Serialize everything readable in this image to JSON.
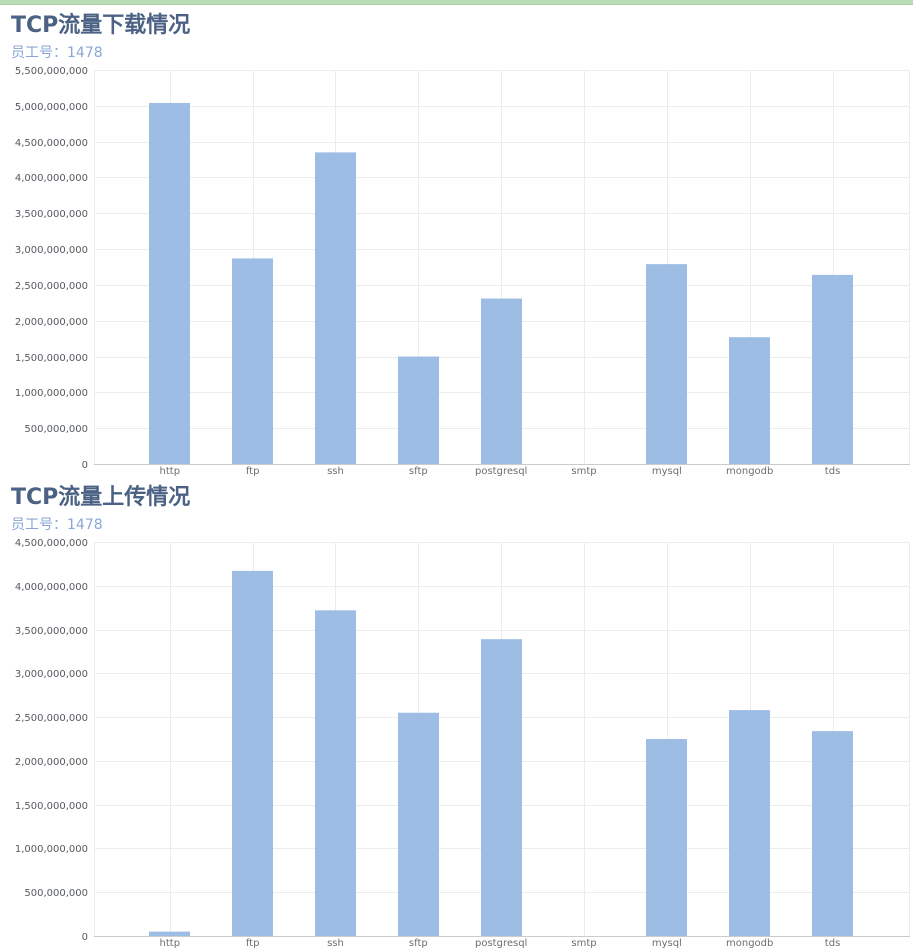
{
  "colors": {
    "bar": "#9dbde5",
    "grid": "#ececec",
    "axis": "#cccccc",
    "title": "#4b6285",
    "subtitle": "#88a7d6"
  },
  "chart_data": [
    {
      "type": "bar",
      "title": "TCP流量下载情况",
      "subtitle": "员工号：1478",
      "categories": [
        "http",
        "ftp",
        "ssh",
        "sftp",
        "postgresql",
        "smtp",
        "mysql",
        "mongodb",
        "tds"
      ],
      "values": [
        5040000000,
        2870000000,
        4350000000,
        1500000000,
        2310000000,
        0,
        2790000000,
        1770000000,
        2640000000
      ],
      "ylim": [
        0,
        5500000000
      ],
      "yticks": [
        0,
        500000000,
        1000000000,
        1500000000,
        2000000000,
        2500000000,
        3000000000,
        3500000000,
        4000000000,
        4500000000,
        5000000000,
        5500000000
      ],
      "grid": true,
      "xlabel": "",
      "ylabel": ""
    },
    {
      "type": "bar",
      "title": "TCP流量上传情况",
      "subtitle": "员工号：1478",
      "categories": [
        "http",
        "ftp",
        "ssh",
        "sftp",
        "postgresql",
        "smtp",
        "mysql",
        "mongodb",
        "tds"
      ],
      "values": [
        50000000,
        4170000000,
        3720000000,
        2550000000,
        3390000000,
        0,
        2250000000,
        2580000000,
        2340000000
      ],
      "ylim": [
        0,
        4500000000
      ],
      "yticks": [
        0,
        500000000,
        1000000000,
        1500000000,
        2000000000,
        2500000000,
        3000000000,
        3500000000,
        4000000000,
        4500000000
      ],
      "grid": true,
      "xlabel": "",
      "ylabel": ""
    }
  ]
}
